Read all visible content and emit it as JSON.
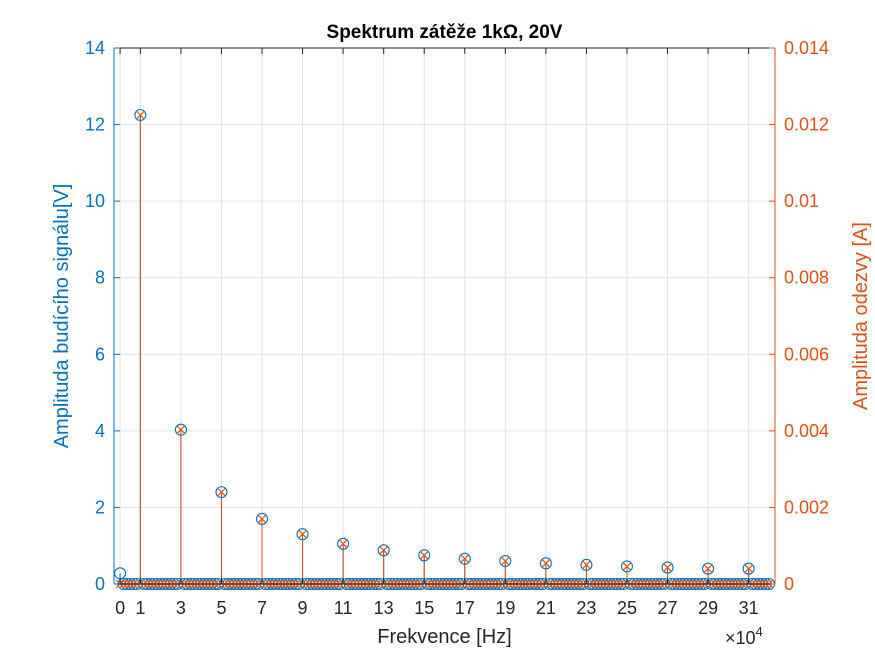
{
  "chart_data": {
    "type": "stem",
    "title": "Spektrum zátěže 1kΩ, 20V",
    "xlabel": "Frekvence [Hz]",
    "x_exponent_label": "×10",
    "x_exponent_power": "4",
    "xlim": [
      -0.3,
      32.3
    ],
    "x_ticks": [
      0,
      1,
      3,
      5,
      7,
      9,
      11,
      13,
      15,
      17,
      19,
      21,
      23,
      25,
      27,
      29,
      31
    ],
    "x_tick_labels": [
      "0",
      "1",
      "3",
      "5",
      "7",
      "9",
      "11",
      "13",
      "15",
      "17",
      "19",
      "21",
      "23",
      "25",
      "27",
      "29",
      "31"
    ],
    "grid": true,
    "y_left": {
      "label": "Amplituda budícího signálu[V]",
      "ylim": [
        0,
        14
      ],
      "ticks": [
        0,
        2,
        4,
        6,
        8,
        10,
        12,
        14
      ],
      "tick_labels": [
        "0",
        "2",
        "4",
        "6",
        "8",
        "10",
        "12",
        "14"
      ],
      "color": "#0072BD"
    },
    "y_right": {
      "label": "Amplituda odezvy [A]",
      "ylim": [
        0,
        0.014
      ],
      "ticks": [
        0,
        0.002,
        0.004,
        0.006,
        0.008,
        0.01,
        0.012,
        0.014
      ],
      "tick_labels": [
        "0",
        "0.002",
        "0.004",
        "0.006",
        "0.008",
        "0.01",
        "0.012",
        "0.014"
      ],
      "color": "#D95319"
    },
    "series": [
      {
        "axis": "left",
        "marker": "circle",
        "color": "#0072BD",
        "harmonics_x": [
          0,
          1,
          3,
          5,
          7,
          9,
          11,
          13,
          15,
          17,
          19,
          21,
          23,
          25,
          27,
          29,
          31
        ],
        "harmonics_y": [
          0.28,
          12.25,
          4.03,
          2.4,
          1.7,
          1.3,
          1.05,
          0.88,
          0.75,
          0.66,
          0.6,
          0.54,
          0.5,
          0.46,
          0.43,
          0.4,
          0.4
        ],
        "floor_step": 0.1667,
        "floor_range": [
          0,
          32
        ]
      },
      {
        "axis": "right",
        "marker": "cross",
        "color": "#D95319",
        "harmonics_x": [
          1,
          3,
          5,
          7,
          9,
          11,
          13,
          15,
          17,
          19,
          21,
          23,
          25,
          27,
          29,
          31
        ],
        "harmonics_y": [
          0.01225,
          0.00403,
          0.0024,
          0.0017,
          0.0013,
          0.00105,
          0.00088,
          0.00075,
          0.00066,
          0.0006,
          0.00054,
          0.0005,
          0.00046,
          0.00043,
          0.0004,
          0.0004
        ],
        "floor_step": 0.1667,
        "floor_range": [
          0,
          32
        ]
      }
    ]
  }
}
